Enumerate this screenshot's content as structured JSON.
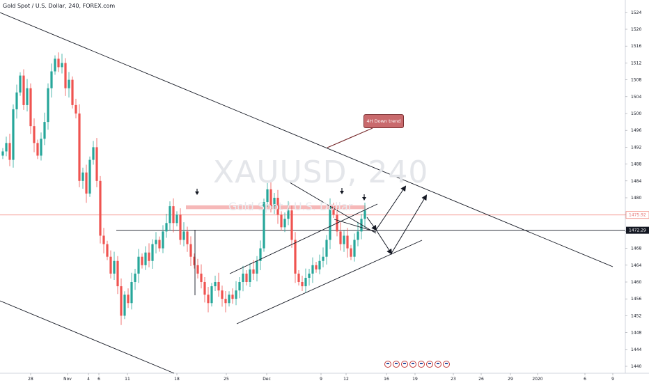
{
  "symbol_title": "Gold Spot / U.S. Dollar, 240, FOREX.com",
  "watermark": {
    "symbol": "XAUUSD, 240",
    "description": "Gold Spot / U.S. Dollar"
  },
  "annotation": {
    "text": "4H Down trend"
  },
  "colors": {
    "up": "#26a69a",
    "down": "#ef5350",
    "line": "#131722",
    "resistance": "#f28b82"
  },
  "chart_data": {
    "type": "candlestick",
    "y_axis": {
      "ticks": [
        1524,
        1520,
        1516,
        1512,
        1508,
        1504,
        1500,
        1496,
        1492,
        1488,
        1484,
        1480,
        1476,
        1472,
        1468,
        1464,
        1460,
        1456,
        1452,
        1448,
        1444,
        1440
      ],
      "range": [
        1438.5,
        1526
      ]
    },
    "x_axis": {
      "labels": [
        "28",
        "Nov",
        "4",
        "6",
        "11",
        "18",
        "25",
        "Dec",
        "9",
        "12",
        "16",
        "19",
        "23",
        "26",
        "29",
        "2020",
        "6",
        "9"
      ]
    },
    "price_tags": [
      {
        "label": "1475.92",
        "value": 1475.92,
        "style": "red"
      },
      {
        "label": "1472.29",
        "value": 1472.29,
        "style": "dark"
      }
    ],
    "horizontal_levels": [
      {
        "value": 1472.29,
        "from_x": "early Nov",
        "to": "right edge"
      },
      {
        "value": 1475.92,
        "style": "thin red"
      }
    ],
    "resistance_zone": {
      "from": 1477.3,
      "to": 1478.2
    },
    "series": [
      {
        "name": "XAUUSD H4 close",
        "values": [
          1491,
          1493,
          1489,
          1501,
          1505,
          1509,
          1502,
          1506,
          1497,
          1493,
          1490,
          1494,
          1498,
          1506,
          1510,
          1513,
          1511,
          1512,
          1506,
          1508,
          1502,
          1500,
          1484,
          1486,
          1481,
          1489,
          1492,
          1484,
          1471,
          1469,
          1466,
          1462,
          1465,
          1459,
          1452,
          1457,
          1455,
          1460,
          1462,
          1466,
          1464,
          1467,
          1465,
          1469,
          1470,
          1468,
          1472,
          1474,
          1478,
          1474,
          1476,
          1470,
          1472,
          1469,
          1466,
          1464,
          1462,
          1460,
          1457,
          1455,
          1459,
          1460,
          1458,
          1456,
          1455,
          1457,
          1456,
          1458,
          1460,
          1462,
          1460,
          1463,
          1462,
          1465,
          1468,
          1479,
          1482,
          1478,
          1480,
          1476,
          1473,
          1475,
          1477,
          1470,
          1462,
          1460,
          1459,
          1461,
          1462,
          1464,
          1463,
          1465,
          1466,
          1470,
          1478,
          1476,
          1472,
          1469,
          1471,
          1468,
          1466,
          1470,
          1472,
          1475,
          1477
        ]
      }
    ]
  }
}
